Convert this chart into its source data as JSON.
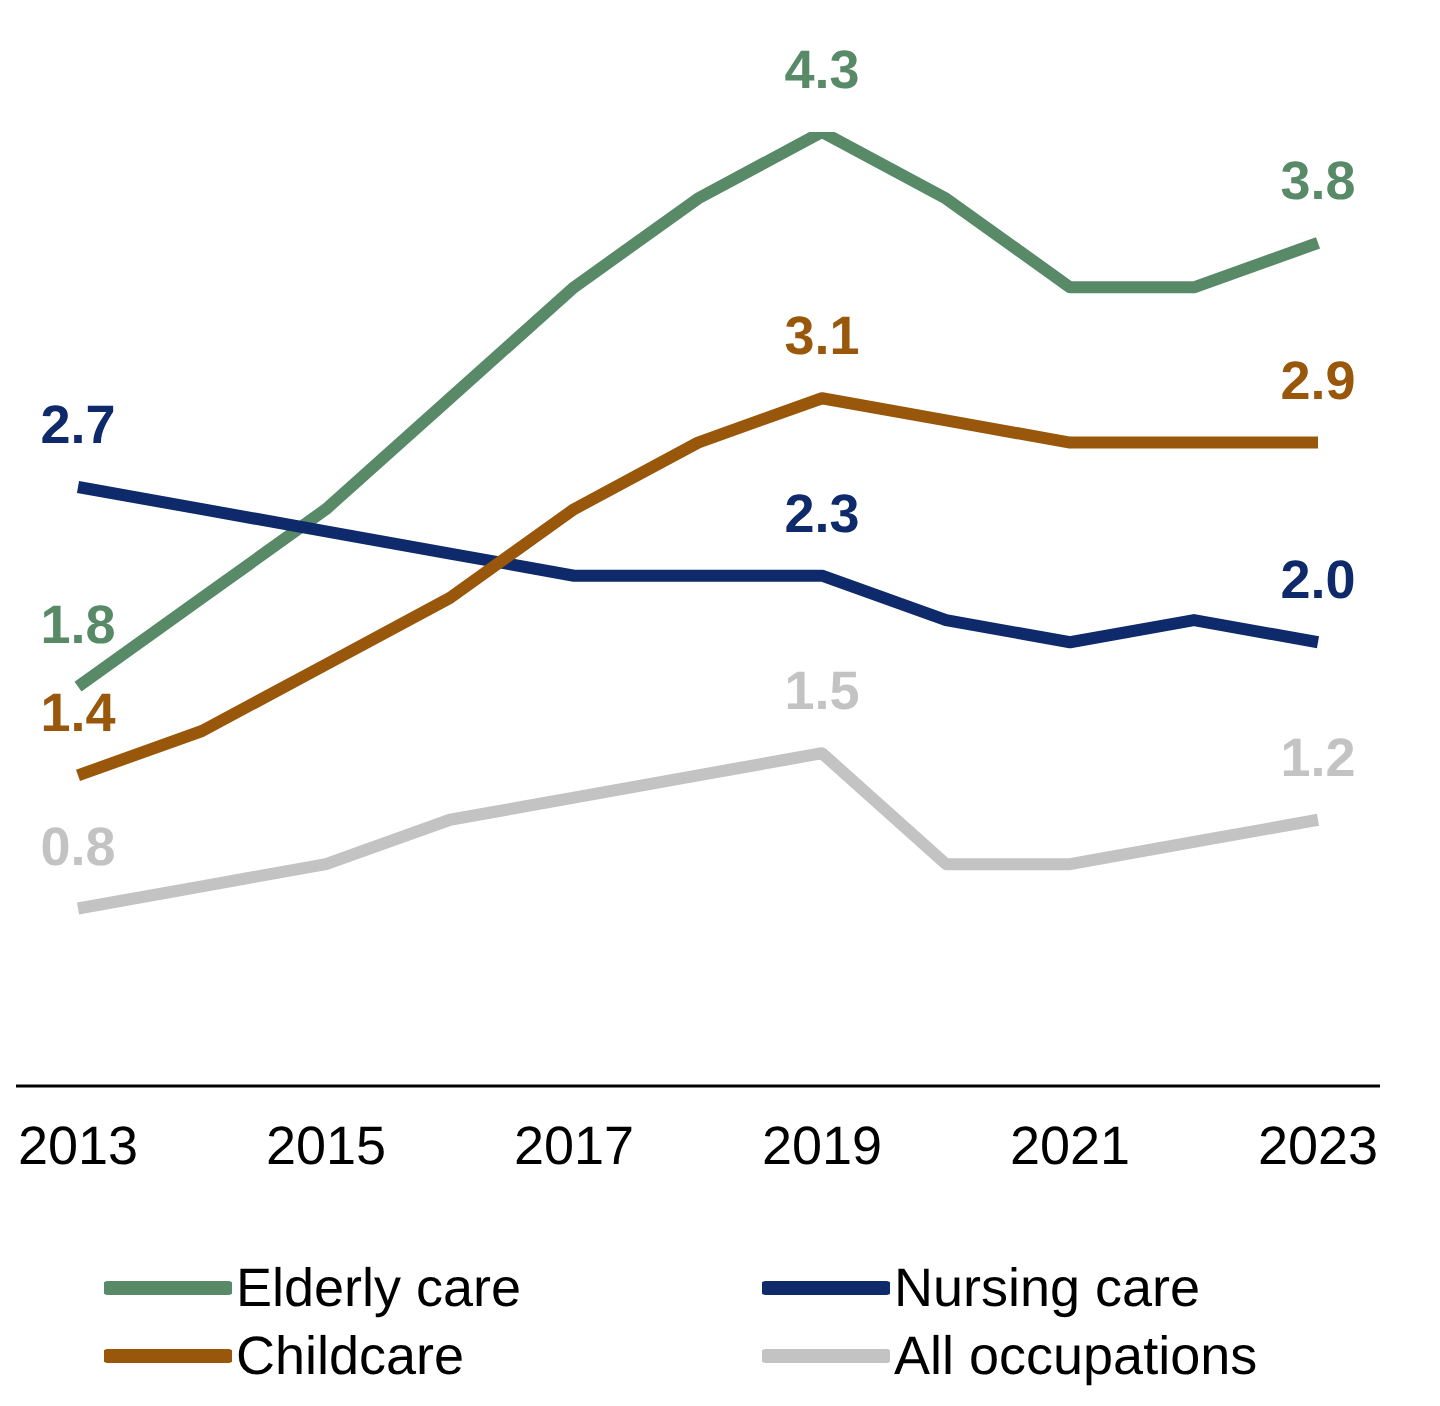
{
  "chart_data": {
    "type": "line",
    "x": [
      2013,
      2014,
      2015,
      2016,
      2017,
      2018,
      2019,
      2020,
      2021,
      2022,
      2023
    ],
    "xlim": [
      2012.5,
      2023.5
    ],
    "xticks": [
      2013,
      2015,
      2017,
      2019,
      2021,
      2023
    ],
    "tick_labels": "x",
    "legend": "bottom",
    "grid": false,
    "marker": "none",
    "line_style": "solid",
    "series": [
      {
        "name": "Elderly care",
        "color": "#588a68",
        "values": [
          1.8,
          2.2,
          2.6,
          3.1,
          3.6,
          4.0,
          4.3,
          4.0,
          3.6,
          3.6,
          3.8
        ],
        "value_labels": [
          "1.8",
          null,
          null,
          null,
          null,
          null,
          "4.3",
          null,
          null,
          null,
          "3.8"
        ]
      },
      {
        "name": "Nursing care",
        "color": "#0e2a6a",
        "values": [
          2.7,
          2.6,
          2.5,
          2.4,
          2.3,
          2.3,
          2.3,
          2.1,
          2.0,
          2.1,
          2.0
        ],
        "value_labels": [
          "2.7",
          null,
          null,
          null,
          null,
          null,
          "2.3",
          null,
          null,
          null,
          "2.0"
        ]
      },
      {
        "name": "Childcare",
        "color": "#98570b",
        "values": [
          1.4,
          1.6,
          1.9,
          2.2,
          2.6,
          2.9,
          3.1,
          3.0,
          2.9,
          2.9,
          2.9
        ],
        "value_labels": [
          "1.4",
          null,
          null,
          null,
          null,
          null,
          "3.1",
          null,
          null,
          null,
          "2.9"
        ]
      },
      {
        "name": "All occupations",
        "color": "#c3c3c3",
        "values": [
          0.8,
          0.9,
          1.0,
          1.2,
          1.3,
          1.4,
          1.5,
          1.0,
          1.0,
          1.1,
          1.2
        ],
        "value_labels": [
          "0.8",
          null,
          null,
          null,
          null,
          null,
          "1.5",
          null,
          null,
          null,
          "1.2"
        ]
      }
    ]
  }
}
